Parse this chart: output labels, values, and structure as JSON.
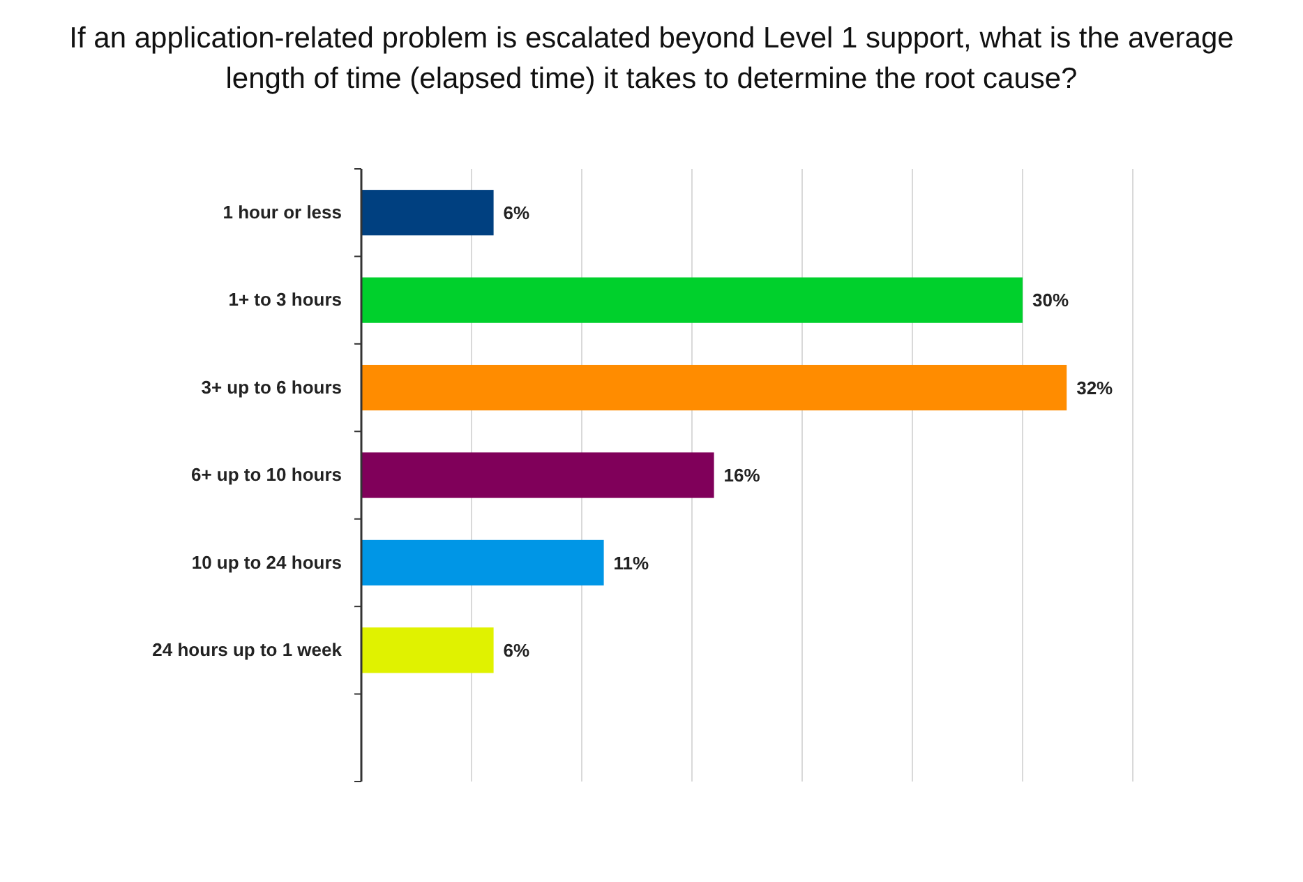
{
  "chart_data": {
    "type": "bar",
    "orientation": "horizontal",
    "title": "If an application-related problem is escalated beyond Level 1 support, what is the average length of time (elapsed time) it takes to determine the root cause?",
    "categories": [
      "1 hour or less",
      "1+ to 3 hours",
      "3+ up to 6 hours",
      "6+ up to 10 hours",
      "10 up to 24 hours",
      "24 hours up to 1 week",
      null
    ],
    "values": [
      6,
      30,
      32,
      16,
      11,
      6,
      null
    ],
    "colors": [
      "#004080",
      "#00d02c",
      "#ff8c00",
      "#80005a",
      "#0096e6",
      "#e0f200",
      null
    ],
    "value_labels": [
      "6%",
      "30%",
      "32%",
      "16%",
      "11%",
      "6%",
      null
    ],
    "xlim": [
      0,
      35
    ],
    "xticks": [
      {
        "value": 0,
        "label": null
      },
      {
        "value": 5,
        "label": null
      },
      {
        "value": 10,
        "label": null
      },
      {
        "value": 15,
        "label": null
      },
      {
        "value": 20,
        "label": null
      },
      {
        "value": 25,
        "label": null
      },
      {
        "value": 30,
        "label": null
      },
      {
        "value": 35,
        "label": null
      }
    ],
    "tick_labels": "y",
    "grid": "x"
  }
}
